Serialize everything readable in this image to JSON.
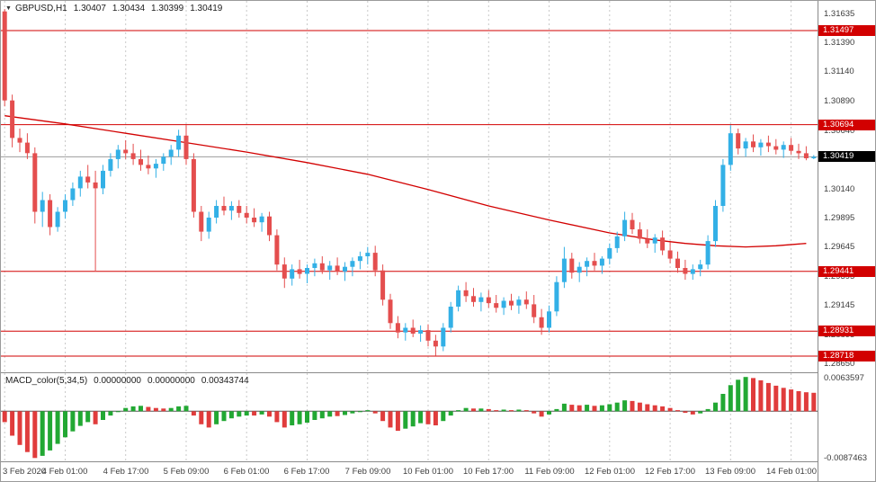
{
  "icons": {
    "dropdown": "▼"
  },
  "quote_bar": {
    "symbol": "GBPUSD,H1",
    "open": "1.30407",
    "high": "1.30434",
    "low": "1.30399",
    "close": "1.30419"
  },
  "colors": {
    "bull": "#33b0e6",
    "bear": "#e44e4e",
    "line_red": "#d20000",
    "badge_red": "#d20000",
    "badge_black": "#000000",
    "grid": "#c9c9c9",
    "axis_text": "#3c3c3c",
    "macd_up": "#22a833",
    "macd_down": "#e03c3c",
    "ma_line": "#d20000",
    "current_price_line": "#9b9b9b",
    "macd_zero_line": "#555555"
  },
  "axes": {
    "price_labels": [
      {
        "text": "1.31635",
        "value": 1.31635
      },
      {
        "text": "1.31390",
        "value": 1.3139
      },
      {
        "text": "1.31140",
        "value": 1.3114
      },
      {
        "text": "1.30890",
        "value": 1.3089
      },
      {
        "text": "1.30640",
        "value": 1.3064
      },
      {
        "text": "1.30390",
        "value": 1.3039
      },
      {
        "text": "1.30140",
        "value": 1.3014
      },
      {
        "text": "1.29895",
        "value": 1.29895
      },
      {
        "text": "1.29645",
        "value": 1.29645
      },
      {
        "text": "1.29395",
        "value": 1.29395
      },
      {
        "text": "1.29145",
        "value": 1.29145
      },
      {
        "text": "1.28895",
        "value": 1.28895
      },
      {
        "text": "1.28650",
        "value": 1.2865
      }
    ],
    "badges": [
      {
        "text": "1.31497",
        "value": 1.31497,
        "color": "red"
      },
      {
        "text": "1.30694",
        "value": 1.30694,
        "color": "red"
      },
      {
        "text": "1.30419",
        "value": 1.30419,
        "color": "black"
      },
      {
        "text": "1.29441",
        "value": 1.29441,
        "color": "red"
      },
      {
        "text": "1.28931",
        "value": 1.28931,
        "color": "red"
      },
      {
        "text": "1.28718",
        "value": 1.28718,
        "color": "red"
      }
    ],
    "time_labels": [
      {
        "text": "3 Feb 2020",
        "index": 0,
        "align": "left"
      },
      {
        "text": "4 Feb 01:00",
        "index": 8
      },
      {
        "text": "4 Feb 17:00",
        "index": 16
      },
      {
        "text": "5 Feb 09:00",
        "index": 24
      },
      {
        "text": "6 Feb 01:00",
        "index": 32
      },
      {
        "text": "6 Feb 17:00",
        "index": 40
      },
      {
        "text": "7 Feb 09:00",
        "index": 48
      },
      {
        "text": "10 Feb 01:00",
        "index": 56
      },
      {
        "text": "10 Feb 17:00",
        "index": 64
      },
      {
        "text": "11 Feb 09:00",
        "index": 72
      },
      {
        "text": "12 Feb 01:00",
        "index": 80
      },
      {
        "text": "12 Feb 17:00",
        "index": 88
      },
      {
        "text": "13 Feb 09:00",
        "index": 96
      },
      {
        "text": "14 Feb 01:00",
        "index": 104
      }
    ]
  },
  "chart_data": {
    "type": "candlestick",
    "symbol": "GBPUSD",
    "timeframe": "H1",
    "current_price": 1.30419,
    "price_scale": {
      "top": 1.3175,
      "bottom": 1.2858
    },
    "levels": [
      1.31497,
      1.30694,
      1.29441,
      1.28931,
      1.28718
    ],
    "candles": [
      [
        1.3166,
        1.3168,
        1.3085,
        1.309
      ],
      [
        1.309,
        1.3095,
        1.305,
        1.3058
      ],
      [
        1.3058,
        1.3066,
        1.3046,
        1.3054
      ],
      [
        1.3054,
        1.3062,
        1.304,
        1.3045
      ],
      [
        1.3045,
        1.305,
        1.2985,
        1.2995
      ],
      [
        1.2995,
        1.3012,
        1.2982,
        1.3005
      ],
      [
        1.3005,
        1.301,
        1.2975,
        1.2982
      ],
      [
        1.2982,
        1.2999,
        1.2978,
        1.2995
      ],
      [
        1.2995,
        1.301,
        1.2989,
        1.3005
      ],
      [
        1.3005,
        1.302,
        1.3,
        1.3015
      ],
      [
        1.3015,
        1.303,
        1.3008,
        1.3025
      ],
      [
        1.3025,
        1.3035,
        1.3015,
        1.302
      ],
      [
        1.302,
        1.303,
        1.2944,
        1.3015
      ],
      [
        1.3015,
        1.3035,
        1.301,
        1.303
      ],
      [
        1.303,
        1.3045,
        1.3025,
        1.304
      ],
      [
        1.304,
        1.3052,
        1.3032,
        1.3048
      ],
      [
        1.3048,
        1.3056,
        1.304,
        1.3045
      ],
      [
        1.3045,
        1.3053,
        1.3035,
        1.304
      ],
      [
        1.304,
        1.3048,
        1.303,
        1.3035
      ],
      [
        1.3035,
        1.3043,
        1.3027,
        1.3032
      ],
      [
        1.3032,
        1.304,
        1.3024,
        1.3036
      ],
      [
        1.3036,
        1.3045,
        1.303,
        1.3042
      ],
      [
        1.3042,
        1.3052,
        1.3035,
        1.3048
      ],
      [
        1.3048,
        1.3065,
        1.3042,
        1.306
      ],
      [
        1.306,
        1.3069,
        1.3035,
        1.304
      ],
      [
        1.304,
        1.3045,
        1.299,
        1.2995
      ],
      [
        1.2995,
        1.3,
        1.297,
        1.2978
      ],
      [
        1.2978,
        1.2995,
        1.2972,
        1.299
      ],
      [
        1.299,
        1.3005,
        1.2985,
        1.3
      ],
      [
        1.3,
        1.3008,
        1.2992,
        1.2996
      ],
      [
        1.2996,
        1.3004,
        1.2988,
        1.3
      ],
      [
        1.3,
        1.3005,
        1.299,
        1.2994
      ],
      [
        1.2994,
        1.3,
        1.2985,
        1.299
      ],
      [
        1.299,
        1.2998,
        1.2982,
        1.2986
      ],
      [
        1.2986,
        1.2994,
        1.2978,
        1.2991
      ],
      [
        1.2991,
        1.2995,
        1.297,
        1.2975
      ],
      [
        1.2975,
        1.298,
        1.2945,
        1.295
      ],
      [
        1.295,
        1.2956,
        1.293,
        1.2938
      ],
      [
        1.2938,
        1.295,
        1.2932,
        1.2946
      ],
      [
        1.2946,
        1.2954,
        1.2938,
        1.2942
      ],
      [
        1.2942,
        1.295,
        1.2934,
        1.2947
      ],
      [
        1.2947,
        1.2955,
        1.294,
        1.2951
      ],
      [
        1.2951,
        1.2957,
        1.2942,
        1.2945
      ],
      [
        1.2945,
        1.2953,
        1.2937,
        1.2949
      ],
      [
        1.2949,
        1.2956,
        1.2941,
        1.2944
      ],
      [
        1.2944,
        1.2952,
        1.2936,
        1.2948
      ],
      [
        1.2948,
        1.2956,
        1.294,
        1.2953
      ],
      [
        1.2953,
        1.2961,
        1.2946,
        1.2957
      ],
      [
        1.2957,
        1.2965,
        1.295,
        1.296
      ],
      [
        1.296,
        1.2966,
        1.294,
        1.2945
      ],
      [
        1.2945,
        1.295,
        1.2915,
        1.292
      ],
      [
        1.292,
        1.2925,
        1.2895,
        1.29
      ],
      [
        1.29,
        1.2906,
        1.2887,
        1.2892
      ],
      [
        1.2892,
        1.29,
        1.2885,
        1.2896
      ],
      [
        1.2896,
        1.2903,
        1.2888,
        1.2891
      ],
      [
        1.2891,
        1.2898,
        1.2884,
        1.2894
      ],
      [
        1.2894,
        1.2899,
        1.288,
        1.2885
      ],
      [
        1.2885,
        1.289,
        1.2872,
        1.288
      ],
      [
        1.288,
        1.29,
        1.2876,
        1.2896
      ],
      [
        1.2896,
        1.2918,
        1.2892,
        1.2914
      ],
      [
        1.2914,
        1.2932,
        1.291,
        1.2928
      ],
      [
        1.2928,
        1.2935,
        1.2918,
        1.2923
      ],
      [
        1.2923,
        1.293,
        1.2914,
        1.2918
      ],
      [
        1.2918,
        1.2926,
        1.291,
        1.2922
      ],
      [
        1.2922,
        1.2928,
        1.2913,
        1.2917
      ],
      [
        1.2917,
        1.2924,
        1.2909,
        1.2913
      ],
      [
        1.2913,
        1.2922,
        1.2907,
        1.2919
      ],
      [
        1.2919,
        1.2925,
        1.2911,
        1.2915
      ],
      [
        1.2915,
        1.2923,
        1.2908,
        1.292
      ],
      [
        1.292,
        1.2927,
        1.2912,
        1.2916
      ],
      [
        1.2916,
        1.2924,
        1.29,
        1.2905
      ],
      [
        1.2905,
        1.2912,
        1.289,
        1.2896
      ],
      [
        1.2896,
        1.2915,
        1.2892,
        1.291
      ],
      [
        1.291,
        1.294,
        1.2906,
        1.2935
      ],
      [
        1.2935,
        1.2965,
        1.293,
        1.2955
      ],
      [
        1.2955,
        1.296,
        1.2938,
        1.2943
      ],
      [
        1.2943,
        1.2952,
        1.2935,
        1.2948
      ],
      [
        1.2948,
        1.2956,
        1.294,
        1.2953
      ],
      [
        1.2953,
        1.296,
        1.2945,
        1.2949
      ],
      [
        1.2949,
        1.2957,
        1.2942,
        1.2955
      ],
      [
        1.2955,
        1.2968,
        1.295,
        1.2964
      ],
      [
        1.2964,
        1.2978,
        1.296,
        1.2974
      ],
      [
        1.2974,
        1.2995,
        1.297,
        1.2988
      ],
      [
        1.2988,
        1.2994,
        1.2976,
        1.298
      ],
      [
        1.298,
        1.2986,
        1.2968,
        1.2972
      ],
      [
        1.2972,
        1.298,
        1.2964,
        1.2968
      ],
      [
        1.2968,
        1.2976,
        1.296,
        1.2973
      ],
      [
        1.2973,
        1.2979,
        1.2958,
        1.2962
      ],
      [
        1.2962,
        1.2969,
        1.2951,
        1.2955
      ],
      [
        1.2955,
        1.2961,
        1.2943,
        1.2947
      ],
      [
        1.2947,
        1.2954,
        1.2937,
        1.2942
      ],
      [
        1.2942,
        1.295,
        1.2937,
        1.2946
      ],
      [
        1.2946,
        1.2954,
        1.294,
        1.295
      ],
      [
        1.295,
        1.2975,
        1.2946,
        1.297
      ],
      [
        1.297,
        1.3005,
        1.2965,
        1.3
      ],
      [
        1.3,
        1.304,
        1.2995,
        1.3035
      ],
      [
        1.3035,
        1.3069,
        1.303,
        1.3062
      ],
      [
        1.3062,
        1.3066,
        1.3044,
        1.3049
      ],
      [
        1.3049,
        1.3058,
        1.3042,
        1.3055
      ],
      [
        1.3055,
        1.3061,
        1.3046,
        1.305
      ],
      [
        1.305,
        1.3057,
        1.3043,
        1.3054
      ],
      [
        1.3054,
        1.306,
        1.3046,
        1.3051
      ],
      [
        1.3051,
        1.3057,
        1.3044,
        1.3048
      ],
      [
        1.3048,
        1.3055,
        1.3041,
        1.3052
      ],
      [
        1.3052,
        1.3058,
        1.3044,
        1.3047
      ],
      [
        1.3047,
        1.3053,
        1.304,
        1.3045
      ],
      [
        1.3045,
        1.3051,
        1.3039,
        1.30407
      ],
      [
        1.30407,
        1.30434,
        1.30399,
        1.30419
      ]
    ],
    "ma_points": [
      [
        0,
        1.3077
      ],
      [
        8,
        1.307
      ],
      [
        16,
        1.3062
      ],
      [
        24,
        1.3054
      ],
      [
        32,
        1.3046
      ],
      [
        40,
        1.3037
      ],
      [
        48,
        1.3027
      ],
      [
        56,
        1.3014
      ],
      [
        64,
        1.3
      ],
      [
        72,
        1.2988
      ],
      [
        80,
        1.2977
      ],
      [
        86,
        1.2971
      ],
      [
        90,
        1.2968
      ],
      [
        94,
        1.2966
      ],
      [
        98,
        1.2965
      ],
      [
        102,
        1.2966
      ],
      [
        106,
        1.2968
      ]
    ],
    "macd": {
      "name": "MACD_color(5,34,5)",
      "readout": [
        "0.00000000",
        "0.00000000",
        "0.00343744"
      ],
      "scale": {
        "top": 0.007,
        "bottom": -0.0092
      },
      "axis_labels": [
        {
          "text": "0.0063597",
          "value": 0.0063597
        },
        {
          "text": "-0.0087463",
          "value": -0.0087463
        }
      ],
      "bars": [
        [
          -0.002,
          "r"
        ],
        [
          -0.0045,
          "r"
        ],
        [
          -0.0062,
          "r"
        ],
        [
          -0.0075,
          "r"
        ],
        [
          -0.0086,
          "r"
        ],
        [
          -0.0082,
          "g"
        ],
        [
          -0.0072,
          "g"
        ],
        [
          -0.006,
          "g"
        ],
        [
          -0.0048,
          "g"
        ],
        [
          -0.0037,
          "g"
        ],
        [
          -0.0027,
          "g"
        ],
        [
          -0.002,
          "g"
        ],
        [
          -0.0024,
          "r"
        ],
        [
          -0.0016,
          "g"
        ],
        [
          -0.0008,
          "g"
        ],
        [
          0.0,
          "g"
        ],
        [
          0.0006,
          "g"
        ],
        [
          0.0009,
          "g"
        ],
        [
          0.001,
          "g"
        ],
        [
          0.0008,
          "r"
        ],
        [
          0.0006,
          "r"
        ],
        [
          0.0005,
          "r"
        ],
        [
          0.0006,
          "g"
        ],
        [
          0.0009,
          "g"
        ],
        [
          0.001,
          "g"
        ],
        [
          -0.0008,
          "r"
        ],
        [
          -0.0024,
          "r"
        ],
        [
          -0.003,
          "r"
        ],
        [
          -0.0024,
          "g"
        ],
        [
          -0.0018,
          "g"
        ],
        [
          -0.0013,
          "g"
        ],
        [
          -0.001,
          "g"
        ],
        [
          -0.0008,
          "g"
        ],
        [
          -0.0008,
          "r"
        ],
        [
          -0.0006,
          "g"
        ],
        [
          -0.001,
          "r"
        ],
        [
          -0.002,
          "r"
        ],
        [
          -0.003,
          "r"
        ],
        [
          -0.0026,
          "g"
        ],
        [
          -0.0024,
          "g"
        ],
        [
          -0.0021,
          "g"
        ],
        [
          -0.0016,
          "g"
        ],
        [
          -0.0013,
          "g"
        ],
        [
          -0.001,
          "g"
        ],
        [
          -0.0009,
          "r"
        ],
        [
          -0.0007,
          "g"
        ],
        [
          -0.0004,
          "g"
        ],
        [
          -0.0001,
          "g"
        ],
        [
          0.0002,
          "g"
        ],
        [
          -0.0004,
          "r"
        ],
        [
          -0.0018,
          "r"
        ],
        [
          -0.003,
          "r"
        ],
        [
          -0.0036,
          "r"
        ],
        [
          -0.0032,
          "g"
        ],
        [
          -0.0028,
          "g"
        ],
        [
          -0.0022,
          "g"
        ],
        [
          -0.0024,
          "r"
        ],
        [
          -0.0026,
          "r"
        ],
        [
          -0.0018,
          "g"
        ],
        [
          -0.0008,
          "g"
        ],
        [
          0.0002,
          "g"
        ],
        [
          0.0006,
          "g"
        ],
        [
          0.0005,
          "r"
        ],
        [
          0.0005,
          "g"
        ],
        [
          0.0004,
          "r"
        ],
        [
          0.0002,
          "r"
        ],
        [
          0.0003,
          "g"
        ],
        [
          0.0002,
          "r"
        ],
        [
          0.0003,
          "g"
        ],
        [
          0.0002,
          "r"
        ],
        [
          -0.0004,
          "r"
        ],
        [
          -0.001,
          "r"
        ],
        [
          -0.0006,
          "g"
        ],
        [
          0.0004,
          "g"
        ],
        [
          0.0014,
          "g"
        ],
        [
          0.0012,
          "r"
        ],
        [
          0.0011,
          "r"
        ],
        [
          0.0012,
          "g"
        ],
        [
          0.001,
          "r"
        ],
        [
          0.0011,
          "g"
        ],
        [
          0.0013,
          "g"
        ],
        [
          0.0016,
          "g"
        ],
        [
          0.002,
          "g"
        ],
        [
          0.0019,
          "r"
        ],
        [
          0.0016,
          "r"
        ],
        [
          0.0013,
          "r"
        ],
        [
          0.0011,
          "r"
        ],
        [
          0.0009,
          "r"
        ],
        [
          0.0006,
          "r"
        ],
        [
          0.0002,
          "r"
        ],
        [
          -0.0003,
          "r"
        ],
        [
          -0.0006,
          "r"
        ],
        [
          -0.0004,
          "g"
        ],
        [
          0.0004,
          "g"
        ],
        [
          0.0016,
          "g"
        ],
        [
          0.0032,
          "g"
        ],
        [
          0.0048,
          "g"
        ],
        [
          0.0058,
          "g"
        ],
        [
          0.0063,
          "g"
        ],
        [
          0.0061,
          "r"
        ],
        [
          0.0057,
          "r"
        ],
        [
          0.0052,
          "r"
        ],
        [
          0.0047,
          "r"
        ],
        [
          0.0043,
          "r"
        ],
        [
          0.004,
          "r"
        ],
        [
          0.0037,
          "r"
        ],
        [
          0.0035,
          "r"
        ],
        [
          0.0034,
          "r"
        ]
      ]
    }
  }
}
